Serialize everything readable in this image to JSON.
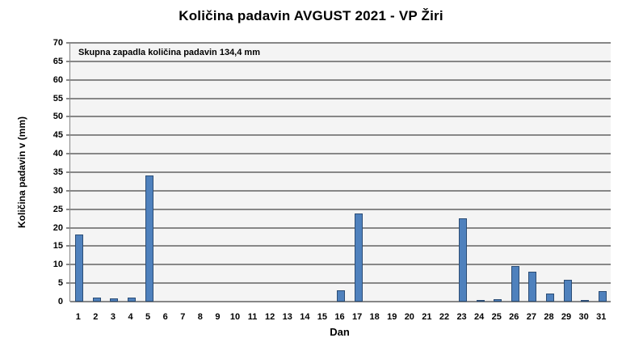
{
  "chart_data": {
    "type": "bar",
    "title": "Količina padavin AVGUST 2021 - VP Žiri",
    "xlabel": "Dan",
    "ylabel": "Količina padavin v  (mm)",
    "annotation": "Skupna zapadla količina padavin 134,4 mm",
    "ylim": [
      0,
      70
    ],
    "yticks": [
      0,
      5,
      10,
      15,
      20,
      25,
      30,
      35,
      40,
      45,
      50,
      55,
      60,
      65,
      70
    ],
    "grid": true,
    "legend": null,
    "bar_color": "#4f81bd",
    "categories": [
      "1",
      "2",
      "3",
      "4",
      "5",
      "6",
      "7",
      "8",
      "9",
      "10",
      "11",
      "12",
      "13",
      "14",
      "15",
      "16",
      "17",
      "18",
      "19",
      "20",
      "21",
      "22",
      "23",
      "24",
      "25",
      "26",
      "27",
      "28",
      "29",
      "30",
      "31"
    ],
    "values": [
      18.2,
      1.0,
      0.8,
      1.2,
      34.2,
      0,
      0,
      0,
      0,
      0,
      0,
      0,
      0,
      0,
      0,
      3.0,
      23.8,
      0,
      0,
      0,
      0,
      0,
      22.5,
      0.2,
      0.6,
      9.6,
      8.2,
      2.1,
      6.0,
      0.2,
      2.8
    ]
  }
}
